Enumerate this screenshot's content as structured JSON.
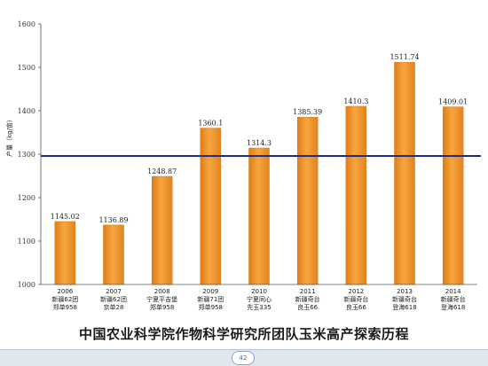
{
  "chart_data": {
    "type": "bar",
    "title": "",
    "ylabel": "产量（kg/亩）",
    "xlabel": "",
    "ylim": [
      1000,
      1600
    ],
    "yticks": [
      1000,
      1100,
      1200,
      1300,
      1400,
      1500,
      1600
    ],
    "grid": false,
    "legend": "none",
    "bar_color": "#f39c2b",
    "reference_line": {
      "value": 1296,
      "color": "#1a2c8c"
    },
    "categories": [
      {
        "year": "2006",
        "line1": "新疆62团",
        "line2": "郑单958"
      },
      {
        "year": "2007",
        "line1": "新疆62团",
        "line2": "京单28"
      },
      {
        "year": "2008",
        "line1": "宁夏平吉堡",
        "line2": "郑单958"
      },
      {
        "year": "2009",
        "line1": "新疆71团",
        "line2": "郑单958"
      },
      {
        "year": "2010",
        "line1": "宁夏同心",
        "line2": "先玉335"
      },
      {
        "year": "2011",
        "line1": "新疆奇台",
        "line2": "良玉66"
      },
      {
        "year": "2012",
        "line1": "新疆奇台",
        "line2": "良玉66"
      },
      {
        "year": "2013",
        "line1": "新疆奇台",
        "line2": "登海618"
      },
      {
        "year": "2014",
        "line1": "新疆奇台",
        "line2": "登海618"
      }
    ],
    "values": [
      1145.02,
      1136.89,
      1248.87,
      1360.1,
      1314.3,
      1385.39,
      1410.3,
      1511.74,
      1409.01
    ],
    "value_labels": [
      "1145.02",
      "1136.89",
      "1248.87",
      "1360.1",
      "1314.3",
      "1385.39",
      "1410.3",
      "1511.74",
      "1409.01"
    ]
  },
  "caption": "中国农业科学院作物科学研究所团队玉米高产探索历程",
  "page_number": "42"
}
